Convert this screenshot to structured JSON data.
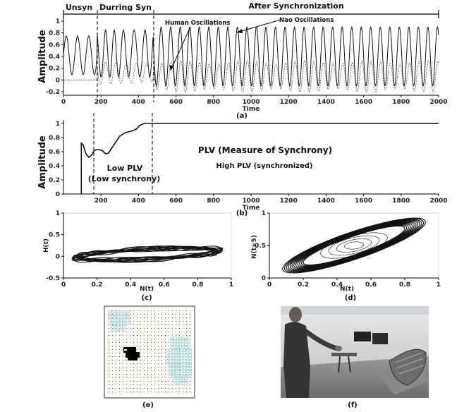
{
  "panel_a": {
    "caption": "(a)",
    "ylabel": "Amplitude",
    "xlabel": "Time",
    "phase_labels": [
      "Unsyn",
      "Durring Syn",
      "After Synchronization"
    ],
    "annotations": [
      "Human Oscillations",
      "Nao Oscillations"
    ],
    "xticks": [
      "0",
      "200",
      "400",
      "600",
      "800",
      "1000",
      "1200",
      "1400",
      "1600",
      "1800",
      "2000"
    ],
    "yticks": [
      "1",
      "0.8",
      "0.6",
      "0.4",
      "0.2",
      "0",
      "-0.2"
    ]
  },
  "panel_b": {
    "caption": "(b)",
    "ylabel": "Amplitude",
    "xlabel": "Time",
    "title": "PLV (Measure of Synchrony)",
    "low_label_1": "Low PLV",
    "low_label_2": "(Low synchrony)",
    "high_label": "High PLV (synchronized)",
    "xticks": [
      "200",
      "400",
      "600",
      "800",
      "1000",
      "1200",
      "1400",
      "1600",
      "1800",
      "2000"
    ],
    "yticks": [
      "1",
      "0.8",
      "0.6",
      "0.4",
      "0.2",
      "0"
    ]
  },
  "panel_c": {
    "caption": "(c)",
    "ylabel": "H(t)",
    "xlabel": "N(t)",
    "xticks": [
      "0",
      "0.2",
      "0.4",
      "0.6",
      "0.8",
      "1"
    ],
    "yticks": [
      "1",
      "0.5",
      "0",
      "-0.5"
    ]
  },
  "panel_d": {
    "caption": "(d)",
    "ylabel": "N(t+5)",
    "xlabel": "N(t)",
    "xticks": [
      "0",
      "0.2",
      "0.4",
      "0.6",
      "0.8",
      "1"
    ],
    "yticks": [
      "1",
      "0.5",
      "0"
    ]
  },
  "panel_e": {
    "caption": "(e)"
  },
  "panel_f": {
    "caption": "(f)"
  },
  "colors": {
    "line": "#111111",
    "grid_cyan": "#8fdfe6",
    "photo_dark": "#3a3a3a"
  }
}
